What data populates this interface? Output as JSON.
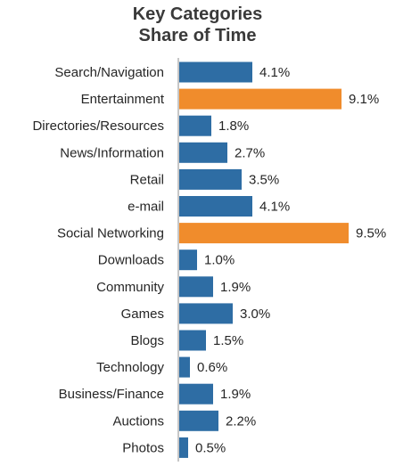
{
  "chart_data": {
    "type": "bar",
    "orientation": "horizontal",
    "title": "Key Categories",
    "subtitle": "Share of Time",
    "categories": [
      "Search/Navigation",
      "Entertainment",
      "Directories/Resources",
      "News/Information",
      "Retail",
      "e-mail",
      "Social Networking",
      "Downloads",
      "Community",
      "Games",
      "Blogs",
      "Technology",
      "Business/Finance",
      "Auctions",
      "Photos"
    ],
    "values": [
      4.1,
      9.1,
      1.8,
      2.7,
      3.5,
      4.1,
      9.5,
      1.0,
      1.9,
      3.0,
      1.5,
      0.6,
      1.9,
      2.2,
      0.5
    ],
    "value_labels": [
      "4.1%",
      "9.1%",
      "1.8%",
      "2.7%",
      "3.5%",
      "4.1%",
      "9.5%",
      "1.0%",
      "1.9%",
      "3.0%",
      "1.5%",
      "0.6%",
      "1.9%",
      "2.2%",
      "0.5%"
    ],
    "highlighted": [
      false,
      true,
      false,
      false,
      false,
      false,
      true,
      false,
      false,
      false,
      false,
      false,
      false,
      false,
      false
    ],
    "colors": {
      "default": "#2e6da4",
      "highlight": "#f08c2c",
      "axis": "#8c8c8c"
    },
    "xlim": [
      0,
      10
    ],
    "grid": false,
    "legend": "none"
  }
}
